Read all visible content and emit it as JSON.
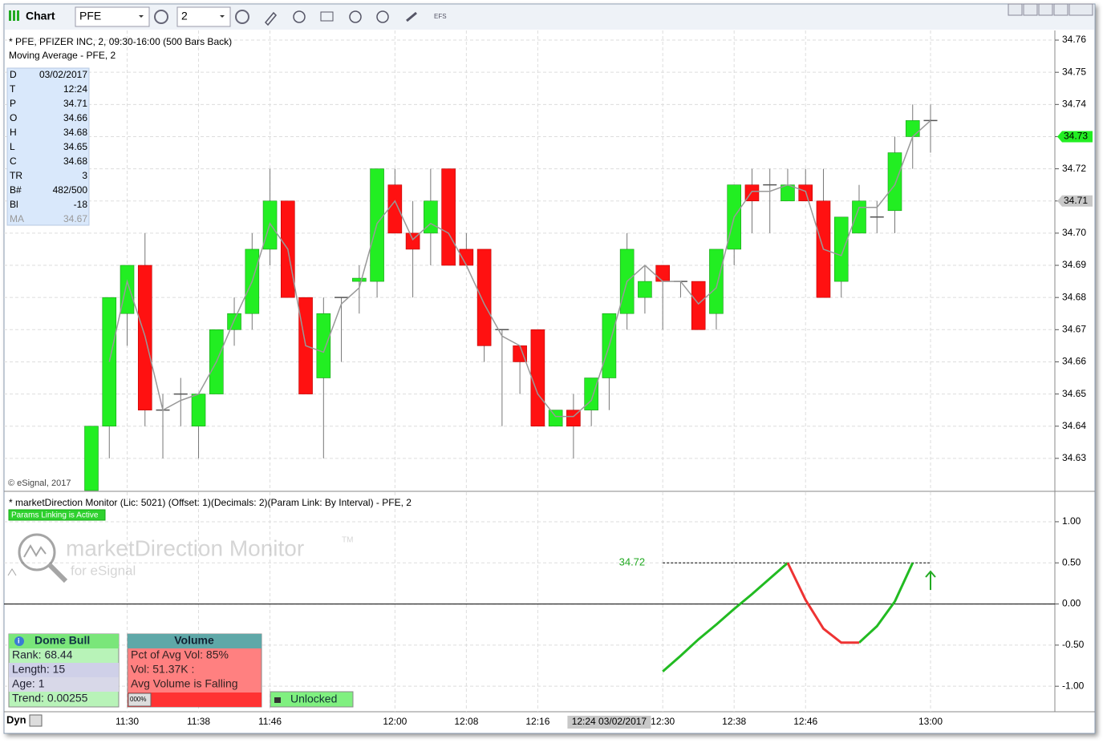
{
  "toolbar": {
    "title": "Chart",
    "symbol": "PFE",
    "interval": "2",
    "efs": "EFS"
  },
  "chart_data": [
    {
      "type": "candlestick",
      "title": "* PFE, PFIZER INC, 2, 09:30-16:00 (500 Bars Back)",
      "subtitle": "Moving Average - PFE, 2",
      "categories": [
        null,
        null,
        "11:30",
        null,
        null,
        null,
        "11:38",
        null,
        null,
        null,
        "11:46",
        null,
        null,
        null,
        null,
        null,
        null,
        "12:00",
        null,
        null,
        null,
        "12:08",
        null,
        null,
        null,
        "12:16",
        null,
        null,
        null,
        null,
        null,
        null,
        "12:30",
        null,
        null,
        null,
        "12:38",
        null,
        null,
        null,
        "12:46",
        null,
        null,
        null,
        null,
        null,
        null,
        "13:00"
      ],
      "open": [
        34.62,
        34.64,
        34.675,
        34.69,
        34.645,
        34.65,
        34.64,
        34.65,
        34.67,
        34.675,
        34.695,
        34.71,
        34.68,
        34.655,
        34.68,
        34.685,
        34.685,
        34.715,
        34.7,
        34.7,
        34.72,
        34.695,
        34.695,
        34.67,
        34.665,
        34.67,
        34.64,
        34.645,
        34.645,
        34.655,
        34.675,
        34.68,
        34.69,
        34.685,
        34.685,
        34.675,
        34.695,
        34.715,
        34.715,
        34.71,
        34.715,
        34.71,
        34.685,
        34.7,
        34.705,
        34.707,
        34.73,
        34.735
      ],
      "high": [
        34.64,
        34.68,
        34.69,
        34.7,
        34.65,
        34.655,
        34.65,
        34.67,
        34.68,
        34.7,
        34.72,
        34.71,
        34.68,
        34.68,
        34.68,
        34.69,
        34.72,
        34.72,
        34.71,
        34.72,
        34.72,
        34.7,
        34.695,
        34.67,
        34.665,
        34.67,
        34.645,
        34.65,
        34.655,
        34.675,
        34.7,
        34.69,
        34.69,
        34.685,
        34.685,
        34.695,
        34.715,
        34.72,
        34.72,
        34.72,
        34.72,
        34.72,
        34.705,
        34.715,
        34.71,
        34.73,
        34.74,
        34.74
      ],
      "low": [
        34.62,
        34.63,
        34.665,
        34.64,
        34.63,
        34.64,
        34.63,
        34.65,
        34.665,
        34.67,
        34.69,
        34.68,
        34.65,
        34.63,
        34.66,
        34.675,
        34.68,
        34.7,
        34.68,
        34.69,
        34.69,
        34.69,
        34.66,
        34.64,
        34.65,
        34.64,
        34.64,
        34.63,
        34.64,
        34.645,
        34.67,
        34.675,
        34.67,
        34.68,
        34.67,
        34.67,
        34.69,
        34.7,
        34.7,
        34.71,
        34.71,
        34.68,
        34.68,
        34.7,
        34.7,
        34.7,
        34.72,
        34.725
      ],
      "close": [
        34.64,
        34.68,
        34.69,
        34.645,
        34.645,
        34.65,
        34.65,
        34.67,
        34.675,
        34.695,
        34.71,
        34.68,
        34.65,
        34.675,
        34.68,
        34.686,
        34.72,
        34.7,
        34.695,
        34.71,
        34.69,
        34.69,
        34.665,
        34.67,
        34.66,
        34.64,
        34.645,
        34.64,
        34.655,
        34.675,
        34.695,
        34.685,
        34.685,
        34.685,
        34.67,
        34.695,
        34.715,
        34.71,
        34.715,
        34.715,
        34.71,
        34.68,
        34.705,
        34.71,
        34.705,
        34.725,
        34.735,
        34.735
      ],
      "ma": [
        null,
        34.66,
        34.685,
        34.668,
        34.645,
        34.648,
        34.65,
        34.66,
        34.673,
        34.685,
        34.703,
        34.695,
        34.665,
        34.663,
        34.678,
        34.683,
        34.703,
        34.71,
        34.698,
        34.703,
        34.7,
        34.69,
        34.678,
        34.668,
        34.665,
        34.65,
        34.643,
        34.643,
        34.648,
        34.665,
        34.685,
        34.69,
        34.685,
        34.685,
        34.678,
        34.683,
        34.705,
        34.713,
        34.713,
        34.715,
        34.713,
        34.695,
        34.693,
        34.708,
        34.708,
        34.715,
        34.73,
        34.735
      ],
      "up_color": "#22ee22",
      "down_color": "#ff1111",
      "ma_color": "#999999",
      "ylim": [
        34.62,
        34.763
      ],
      "yticks": [
        34.63,
        34.64,
        34.65,
        34.66,
        34.67,
        34.68,
        34.69,
        {
          "value": 34.7,
          "label": "34.70"
        },
        34.71,
        34.72,
        34.73,
        34.74,
        34.75,
        34.76
      ],
      "grid": true,
      "markers": [
        {
          "value": 34.73,
          "color": "#22ee22"
        },
        {
          "value": 34.71,
          "color": "#c8c8c8"
        }
      ],
      "copyright": "© eSignal, 2017",
      "cursor_label": "12:24 03/02/2017"
    },
    {
      "type": "line",
      "title": "* marketDirection Monitor (Lic: 5021) (Offset: 1)(Decimals: 2)(Param Link: By Interval) - PFE, 2",
      "badge": "Params Linking is Active",
      "series": [
        {
          "color": "#22bb22",
          "values": [
            null,
            null,
            null,
            null,
            null,
            null,
            null,
            null,
            null,
            null,
            null,
            null,
            null,
            null,
            null,
            null,
            null,
            null,
            null,
            null,
            null,
            null,
            null,
            null,
            null,
            null,
            null,
            null,
            null,
            null,
            null,
            null,
            -0.82,
            -0.63,
            -0.43,
            -0.25,
            -0.06,
            0.12,
            0.31,
            0.5,
            null,
            null,
            null,
            -0.47,
            -0.27,
            0.03,
            0.5,
            null
          ]
        },
        {
          "color": "#ee3333",
          "values": [
            null,
            null,
            null,
            null,
            null,
            null,
            null,
            null,
            null,
            null,
            null,
            null,
            null,
            null,
            null,
            null,
            null,
            null,
            null,
            null,
            null,
            null,
            null,
            null,
            null,
            null,
            null,
            null,
            null,
            null,
            null,
            null,
            null,
            null,
            null,
            null,
            null,
            null,
            null,
            0.5,
            0.05,
            -0.3,
            -0.47,
            -0.47,
            null,
            null,
            null,
            null
          ]
        }
      ],
      "ylim": [
        -1.31,
        1.36
      ],
      "yticks": [
        {
          "value": 1,
          "label": "1.00"
        },
        {
          "value": 0.5,
          "label": "0.50"
        },
        {
          "value": 0,
          "label": "0.00"
        },
        {
          "value": -0.5,
          "label": "-0.50"
        },
        {
          "value": -1,
          "label": "-1.00"
        }
      ],
      "level": 0.5,
      "level_label": "34.72",
      "grid": true
    }
  ],
  "info_panel": [
    [
      "D",
      "03/02/2017"
    ],
    [
      "T",
      "12:24"
    ],
    [
      "P",
      "34.71"
    ],
    [
      "O",
      "34.66"
    ],
    [
      "H",
      "34.68"
    ],
    [
      "L",
      "34.65"
    ],
    [
      "C",
      "34.68"
    ],
    [
      "TR",
      "3"
    ],
    [
      "B#",
      "482/500"
    ],
    [
      "Bl",
      "-18"
    ],
    [
      "MA",
      "34.67"
    ]
  ],
  "logo": {
    "name": "marketDirection Monitor",
    "tm": "TM",
    "sub": "for eSignal"
  },
  "dome_box": {
    "title": "Dome Bull",
    "rows": [
      "Rank: 68.44",
      "Length: 15",
      "Age: 1",
      "Trend: 0.00255"
    ]
  },
  "volume_box": {
    "title": "Volume",
    "rows": [
      "Pct of Avg Vol: 85%",
      "Vol: 51.37K :",
      "Avg Volume is Falling"
    ],
    "bar": "000%"
  },
  "unlock": "Unlocked",
  "status": "Dyn"
}
